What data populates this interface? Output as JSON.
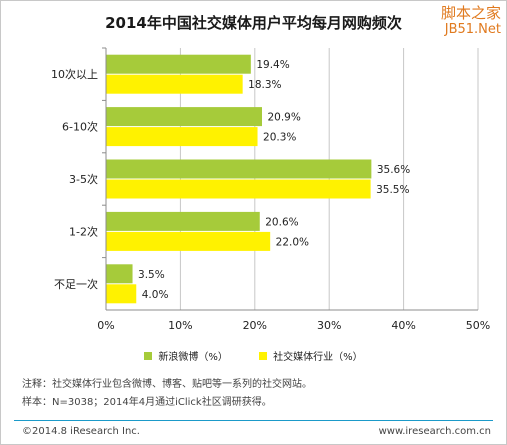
{
  "watermark": {
    "cn": "脚本之家",
    "en": "JB51.Net"
  },
  "footer": {
    "left": "©2014.8 iResearch Inc.",
    "right": "www.iresearch.com.cn"
  },
  "notes": [
    "注释：社交媒体行业包含微博、博客、贴吧等一系列的社交网站。",
    "样本：N=3038；2014年4月通过iClick社区调研获得。"
  ],
  "colors": {
    "series1": "#a6cb3a",
    "series2": "#fff200",
    "axis": "#8c8c8c",
    "grid": "#c7c7c7"
  },
  "chart_data": {
    "type": "bar",
    "orientation": "horizontal",
    "title": "2014年中国社交媒体用户平均每月网购频次",
    "categories": [
      "10次以上",
      "6-10次",
      "3-5次",
      "1-2次",
      "不足一次"
    ],
    "series": [
      {
        "name": "新浪微博（%）",
        "values": [
          19.4,
          20.9,
          35.6,
          20.6,
          3.5
        ]
      },
      {
        "name": "社交媒体行业（%）",
        "values": [
          18.3,
          20.3,
          35.5,
          22.0,
          4.0
        ]
      }
    ],
    "xlim": [
      0,
      50
    ],
    "xticks": [
      "0%",
      "10%",
      "20%",
      "30%",
      "40%",
      "50%"
    ],
    "grid": true,
    "legend": "bottom"
  }
}
